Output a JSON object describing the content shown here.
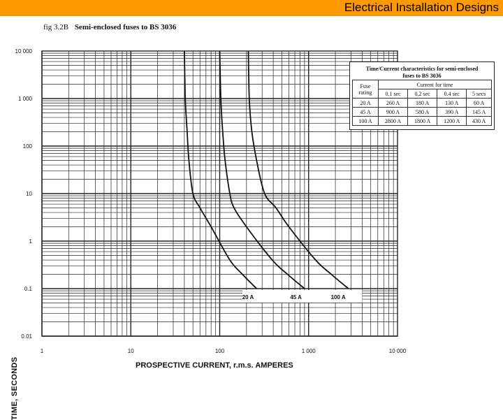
{
  "header": {
    "title": "Electrical Installation Designs"
  },
  "figure": {
    "number": "fig 3.2B",
    "title": "Semi-enclosed fuses to BS 3036"
  },
  "table": {
    "title_line1": "Time/Current characteristics for semi-enclosed",
    "title_line2": "fuses to BS 3036",
    "col_header_rating": "Fuse rating",
    "col_header_group": "Current for time",
    "time_headers": [
      "0.1 sec",
      "0.2 sec",
      "0.4 sec",
      "5 secs"
    ],
    "rows": [
      {
        "rating": "20 A",
        "values": [
          "260 A",
          "180 A",
          "130 A",
          "60 A"
        ]
      },
      {
        "rating": "45 A",
        "values": [
          "900 A",
          "580 A",
          "390 A",
          "145 A"
        ]
      },
      {
        "rating": "100 A",
        "values": [
          "2800 A",
          "1800 A",
          "1200 A",
          "430 A"
        ]
      }
    ]
  },
  "colors": {
    "header_bar": "#ff9900",
    "curve": "#111111",
    "grid": "#222222"
  },
  "chart_data": {
    "type": "line",
    "xscale": "log",
    "yscale": "log",
    "xlabel": "PROSPECTIVE CURRENT, r.m.s. AMPERES",
    "ylabel": "TIME, SECONDS",
    "xlim": [
      1,
      10000
    ],
    "ylim": [
      0.01,
      10000
    ],
    "x_tick_labels": [
      "1",
      "10",
      "100",
      "1 000",
      "10 000"
    ],
    "x_tick_values": [
      1,
      10,
      100,
      1000,
      10000
    ],
    "y_tick_labels": [
      "10 000",
      "1 000",
      "100",
      "10",
      "1",
      "0.1",
      "0.01"
    ],
    "y_tick_values": [
      10000,
      1000,
      100,
      10,
      1,
      0.1,
      0.01
    ],
    "grid": true,
    "series": [
      {
        "name": "20 A",
        "points": [
          [
            40,
            10000
          ],
          [
            41,
            1000
          ],
          [
            43,
            200
          ],
          [
            45,
            50
          ],
          [
            50,
            10
          ],
          [
            60,
            5
          ],
          [
            80,
            2
          ],
          [
            130,
            0.4
          ],
          [
            180,
            0.2
          ],
          [
            260,
            0.1
          ]
        ]
      },
      {
        "name": "45 A",
        "points": [
          [
            100,
            10000
          ],
          [
            103,
            1000
          ],
          [
            108,
            200
          ],
          [
            115,
            50
          ],
          [
            130,
            10
          ],
          [
            145,
            5
          ],
          [
            200,
            2
          ],
          [
            390,
            0.4
          ],
          [
            580,
            0.2
          ],
          [
            900,
            0.1
          ]
        ]
      },
      {
        "name": "100 A",
        "points": [
          [
            210,
            10000
          ],
          [
            215,
            1000
          ],
          [
            230,
            200
          ],
          [
            260,
            50
          ],
          [
            320,
            10
          ],
          [
            430,
            5
          ],
          [
            600,
            2
          ],
          [
            1200,
            0.4
          ],
          [
            1800,
            0.2
          ],
          [
            2800,
            0.1
          ]
        ]
      }
    ]
  }
}
